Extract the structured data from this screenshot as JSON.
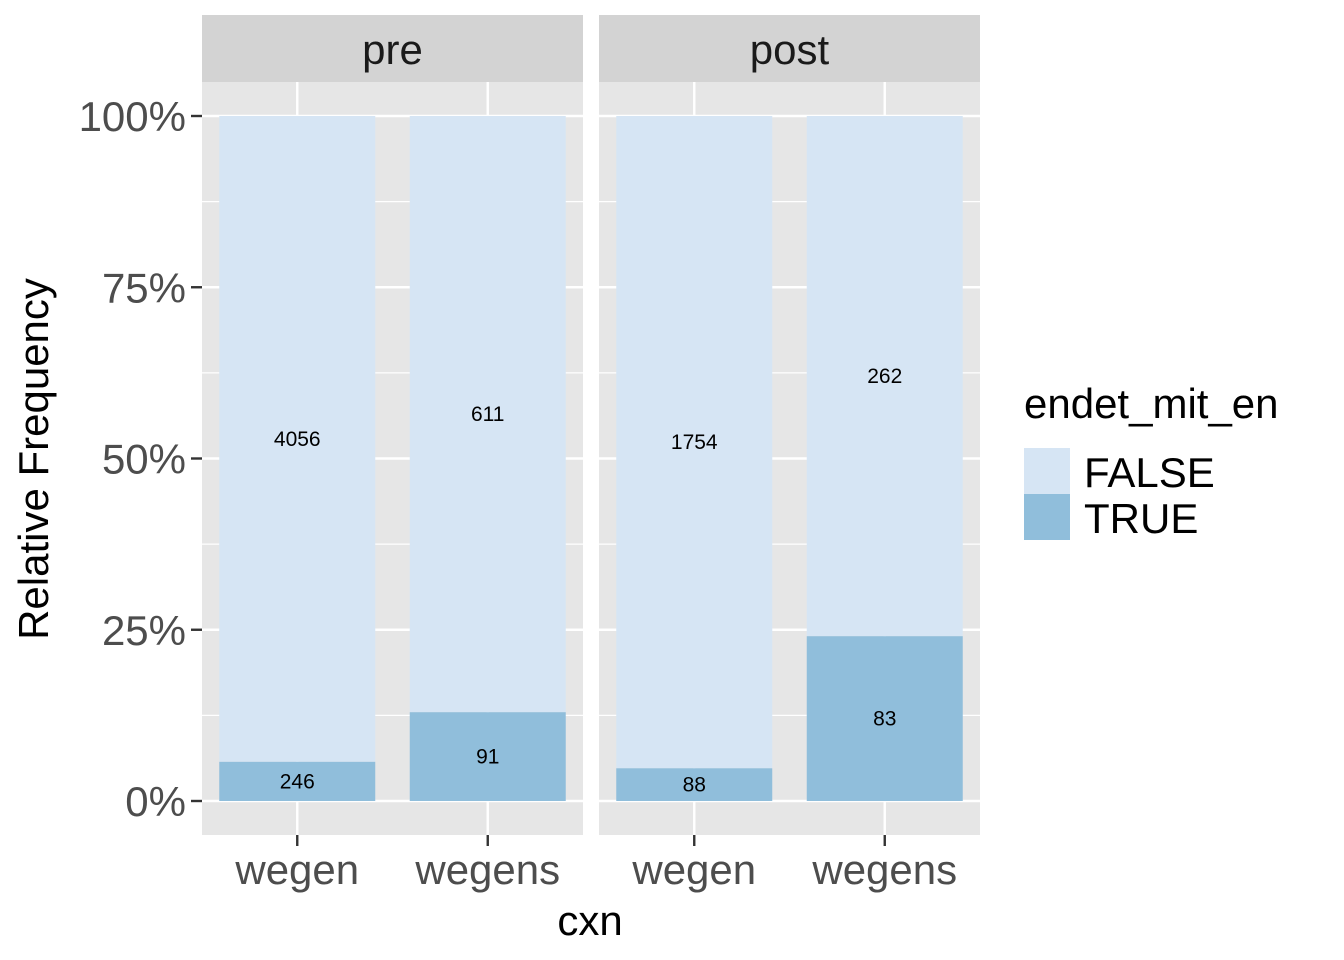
{
  "chart_data": {
    "type": "bar",
    "stacked": true,
    "normalized": true,
    "xlabel": "cxn",
    "ylabel": "Relative Frequency",
    "ylim": [
      0,
      1
    ],
    "y_ticks": [
      "0%",
      "25%",
      "50%",
      "75%",
      "100%"
    ],
    "categories": [
      "wegen",
      "wegens"
    ],
    "legend": {
      "title": "endet_mit_en",
      "placement": "right",
      "entries": [
        "FALSE",
        "TRUE"
      ]
    },
    "colors": {
      "FALSE": "#d6e5f4",
      "TRUE": "#90bedb",
      "panel": "#e6e6e6",
      "strip": "#d3d3d3",
      "grid": "#ffffff"
    },
    "facets": [
      {
        "name": "pre",
        "series": [
          {
            "name": "FALSE",
            "values": [
              4056,
              611
            ]
          },
          {
            "name": "TRUE",
            "values": [
              246,
              91
            ]
          }
        ]
      },
      {
        "name": "post",
        "series": [
          {
            "name": "FALSE",
            "values": [
              1754,
              262
            ]
          },
          {
            "name": "TRUE",
            "values": [
              88,
              83
            ]
          }
        ]
      }
    ]
  }
}
